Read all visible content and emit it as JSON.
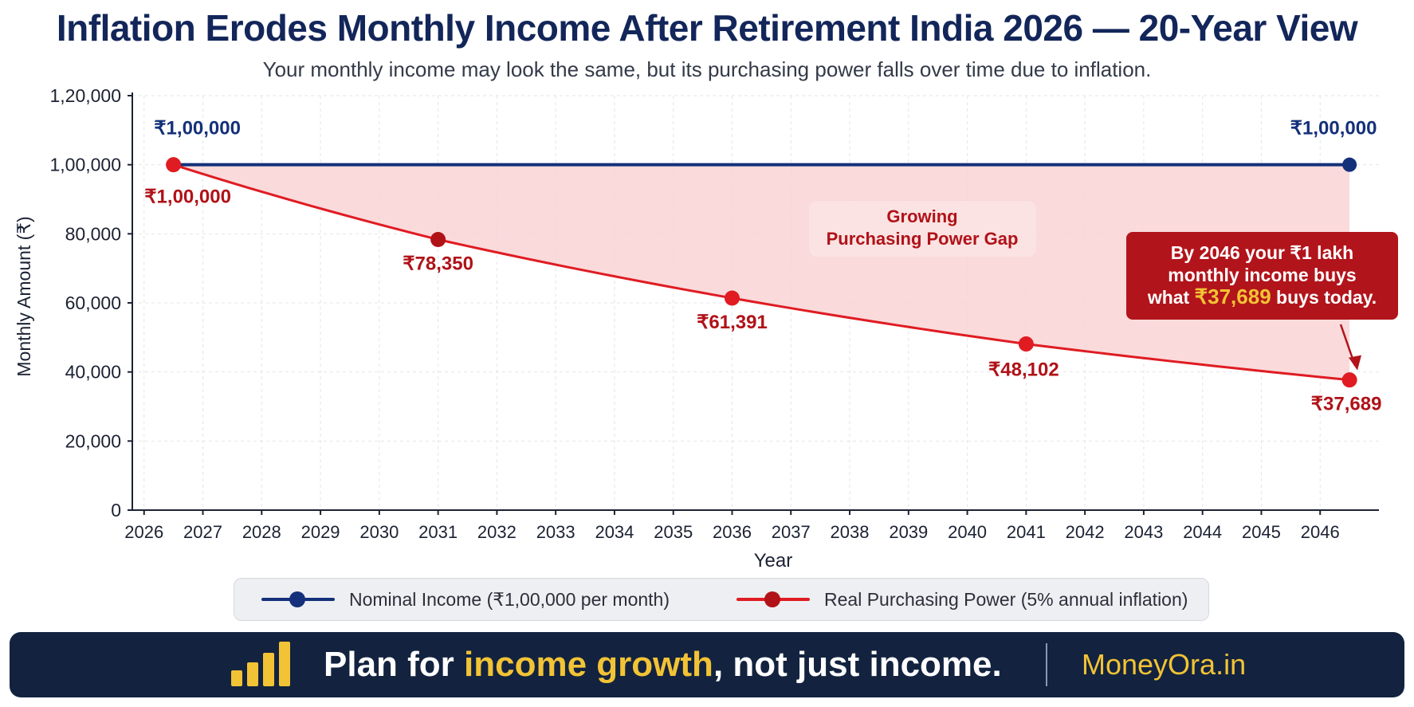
{
  "title": "Inflation Erodes Monthly Income After Retirement India 2026 — 20-Year View",
  "subtitle": "Your monthly income may look the same, but its purchasing power falls over time due to inflation.",
  "colors": {
    "nominal": "#14307a",
    "real": "#e01b22",
    "real_dark": "#b01218",
    "gap_fill": "#f9d4d5",
    "callout_bg": "#b2141b",
    "highlight": "#f2c335",
    "footer_bg": "#13233f"
  },
  "chart_data": {
    "type": "line",
    "xlabel": "Year",
    "ylabel": "Monthly Amount (₹)",
    "x_ticks": [
      "2026",
      "2027",
      "2028",
      "2029",
      "2030",
      "2031",
      "2032",
      "2033",
      "2034",
      "2035",
      "2036",
      "2037",
      "2038",
      "2039",
      "2040",
      "2041",
      "2042",
      "2043",
      "2044",
      "2045",
      "2046"
    ],
    "y_ticks": [
      {
        "value": 0,
        "label": "0"
      },
      {
        "value": 20000,
        "label": "20,000"
      },
      {
        "value": 40000,
        "label": "40,000"
      },
      {
        "value": 60000,
        "label": "60,000"
      },
      {
        "value": 80000,
        "label": "80,000"
      },
      {
        "value": 100000,
        "label": "1,00,000"
      },
      {
        "value": 120000,
        "label": "1,20,000"
      }
    ],
    "ylim": [
      0,
      120000
    ],
    "xlim": [
      2025.8,
      2047.0
    ],
    "grid": true,
    "series": [
      {
        "name": "Nominal Income (₹1,00,000 per month)",
        "color": "#14307a",
        "points": [
          {
            "x": 2026.5,
            "y": 100000,
            "label": "₹1,00,000"
          },
          {
            "x": 2046.5,
            "y": 100000,
            "label": "₹1,00,000"
          }
        ]
      },
      {
        "name": "Real Purchasing Power (5% annual inflation)",
        "color": "#e01b22",
        "points": [
          {
            "x": 2026.5,
            "y": 100000,
            "label": "₹1,00,000"
          },
          {
            "x": 2031,
            "y": 78350,
            "label": "₹78,350"
          },
          {
            "x": 2036,
            "y": 61391,
            "label": "₹61,391"
          },
          {
            "x": 2041,
            "y": 48102,
            "label": "₹48,102"
          },
          {
            "x": 2046.5,
            "y": 37689,
            "label": "₹37,689"
          }
        ]
      }
    ],
    "annotations": {
      "gap_label": [
        "Growing",
        "Purchasing Power Gap"
      ],
      "callout": {
        "line1": "By 2046 your ₹1 lakh",
        "line2": "monthly income buys",
        "line3_pre": "what ",
        "line3_highlight": "₹37,689",
        "line3_post": " buys today."
      }
    }
  },
  "legend": {
    "nominal": "Nominal Income (₹1,00,000 per month)",
    "real": "Real Purchasing Power (5% annual inflation)"
  },
  "footer": {
    "text_pre": "Plan for ",
    "text_highlight": "income growth",
    "text_post": ", not just income.",
    "brand": "MoneyOra.in"
  }
}
